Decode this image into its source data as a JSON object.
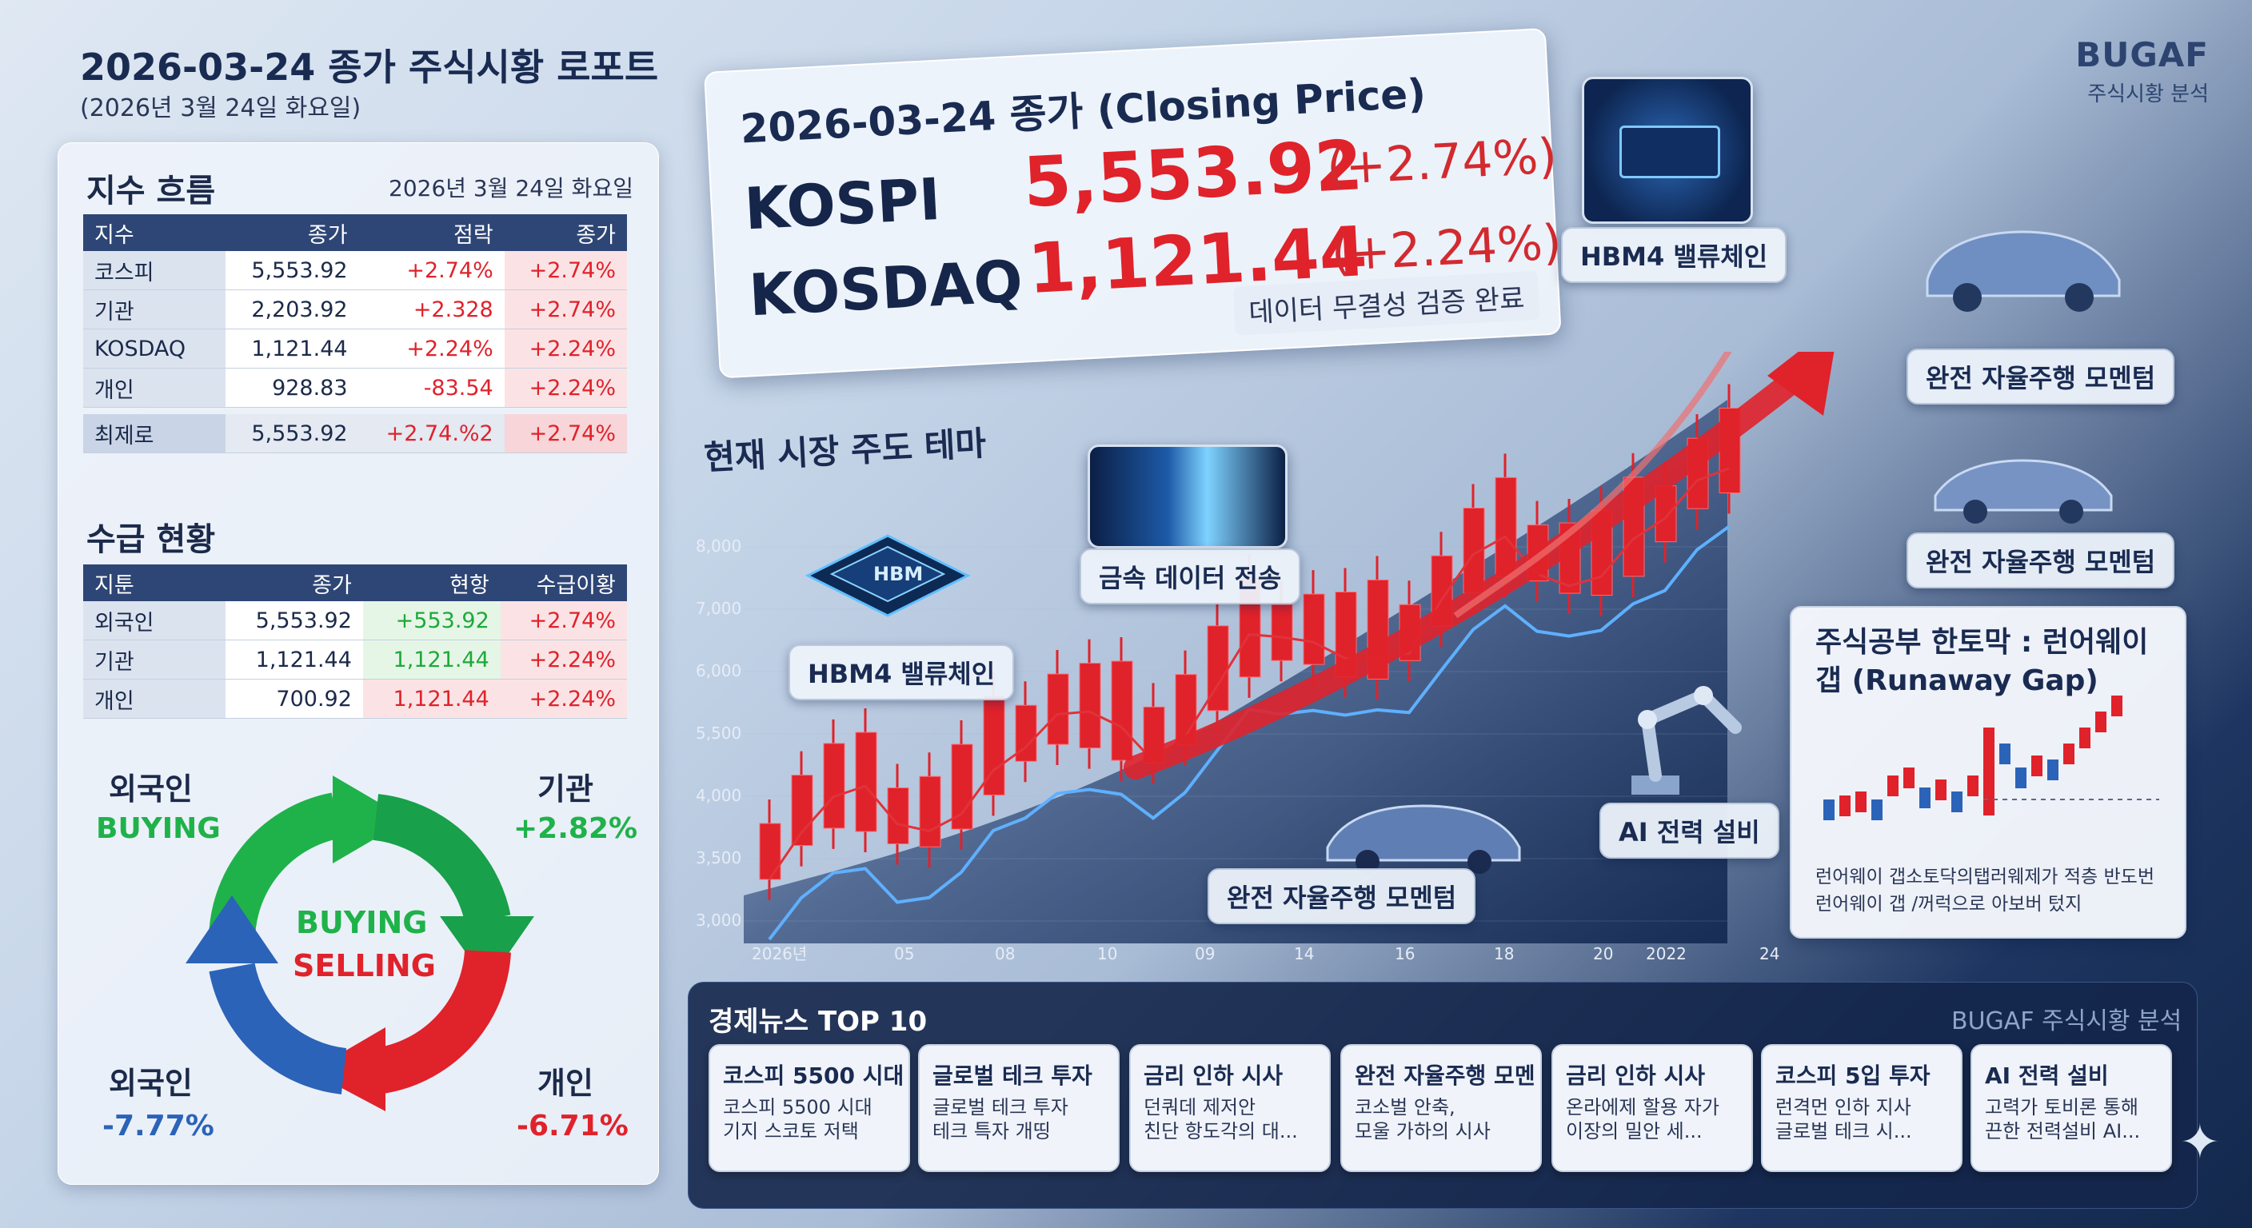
{
  "header": {
    "title": "2026-03-24 종가 주식시황 로포트",
    "subtitle": "(2026년 3월 24일 화요일)",
    "brand": "BUGAF",
    "brand_sub": "주식시황 분석"
  },
  "index_section": {
    "title": "지수 흐름",
    "date": "2026년 3월 24일 화요일",
    "headers": [
      "지수",
      "종가",
      "점락",
      "종가"
    ],
    "rows": [
      [
        "코스피",
        "5,553.92",
        "+2.74%",
        "+2.74%"
      ],
      [
        "기관",
        "2,203.92",
        "+2.328",
        "+2.74%"
      ],
      [
        "KOSDAQ",
        "1,121.44",
        "+2.24%",
        "+2.24%"
      ],
      [
        "개인",
        "928.83",
        "-83.54",
        "+2.24%"
      ]
    ],
    "highlight_row": [
      "최제로",
      "5,553.92",
      "+2.74.%2",
      "+2.74%"
    ]
  },
  "supply_section": {
    "title": "수급 현황",
    "headers": [
      "지툰",
      "종가",
      "현항",
      "수급이황"
    ],
    "rows": [
      [
        "외국인",
        "5,553.92",
        "+553.92",
        "+2.74%"
      ],
      [
        "기관",
        "1,121.44",
        "1,121.44",
        "+2.24%"
      ],
      [
        "개인",
        "700.92",
        "1,121.44",
        "+2.24%"
      ]
    ]
  },
  "flow": {
    "top_left_label": "외국인",
    "top_left_sub": "BUYING",
    "top_right_label": "기관",
    "top_right_sub": "+2.82%",
    "bottom_left_label": "외국인",
    "bottom_left_sub": "-7.77%",
    "bottom_right_label": "개인",
    "bottom_right_sub": "-6.71%",
    "center_buy": "BUYING",
    "center_sell": "SELLING",
    "colors": {
      "green": "#1fb24a",
      "red": "#e0222b",
      "blue": "#2b63b8"
    }
  },
  "price_card": {
    "title": "2026-03-24 종가 (Closing Price)",
    "kospi_label": "KOSPI",
    "kospi_value": "5,553.92",
    "kospi_change": "(+2.74%)",
    "kosdaq_label": "KOSDAQ",
    "kosdaq_value": "1,121.44",
    "kosdaq_change": "(+2.24%)",
    "verify": "데이터 무결성 검증 완료"
  },
  "themes": {
    "title": "현재 시장 주도 테마",
    "hbm_chip_label": "HBM",
    "hbm_left": "HBM4 밸류체인",
    "data_transfer": "금속 데이터 전송",
    "hbm_top": "HBM4 밸류체인",
    "auto_1": "완전 자율주행 모멘텀",
    "auto_2": "완전 자율주행 모멘텀",
    "auto_center": "완전 자율주행 모멘텀",
    "ai_power": "AI 전력 설비"
  },
  "chart_data": {
    "type": "candlestick",
    "yticks": [
      "8,000",
      "7,000",
      "6,000",
      "5,500",
      "4,000",
      "3,500",
      "3,000"
    ],
    "xticks": [
      "2026년",
      "05",
      "08",
      "10",
      "09",
      "14",
      "16",
      "18",
      "20",
      "2022",
      "24"
    ],
    "colors": {
      "up": "#e0222b",
      "line_red": "#e0323a",
      "line_blue": "#5fb0ff",
      "arrow": "#e0222b"
    }
  },
  "study": {
    "title": "주식공부 한토막 : 런어웨이 갭 (Runaway Gap)",
    "desc_1": "런어웨이 갭소토닥의탭러웨제가 적층 반도번",
    "desc_2": "런어웨이 갭 /꺼럭으로 아보버 텄지"
  },
  "news": {
    "title": "경제뉴스 TOP 10",
    "brand": "BUGAF 주식시황 분석",
    "items": [
      {
        "head": "코스피 5500 시대",
        "l1": "코스피 5500 시대",
        "l2": "기지 스코토 저택"
      },
      {
        "head": "글로벌 테크 투자",
        "l1": "글로벌 테크 투자",
        "l2": "테크 특자 개띵"
      },
      {
        "head": "금리 인하 시사",
        "l1": "던쿼데 제저안",
        "l2": "친단 항도각의 대..."
      },
      {
        "head": "완전 자율주행 모멘",
        "l1": "코소벌 안축,",
        "l2": "모울 가하의 시사"
      },
      {
        "head": "금리 인하 시사",
        "l1": "온라에제 할용 자가",
        "l2": "이장의 밀안 세..."
      },
      {
        "head": "코스피 5입 투자",
        "l1": "런격먼 인하 지사",
        "l2": "글로벌 테크 시..."
      },
      {
        "head": "AI 전력 설비",
        "l1": "고력가 토비론 통해",
        "l2": "끈한 전력설비 AI..."
      }
    ]
  }
}
